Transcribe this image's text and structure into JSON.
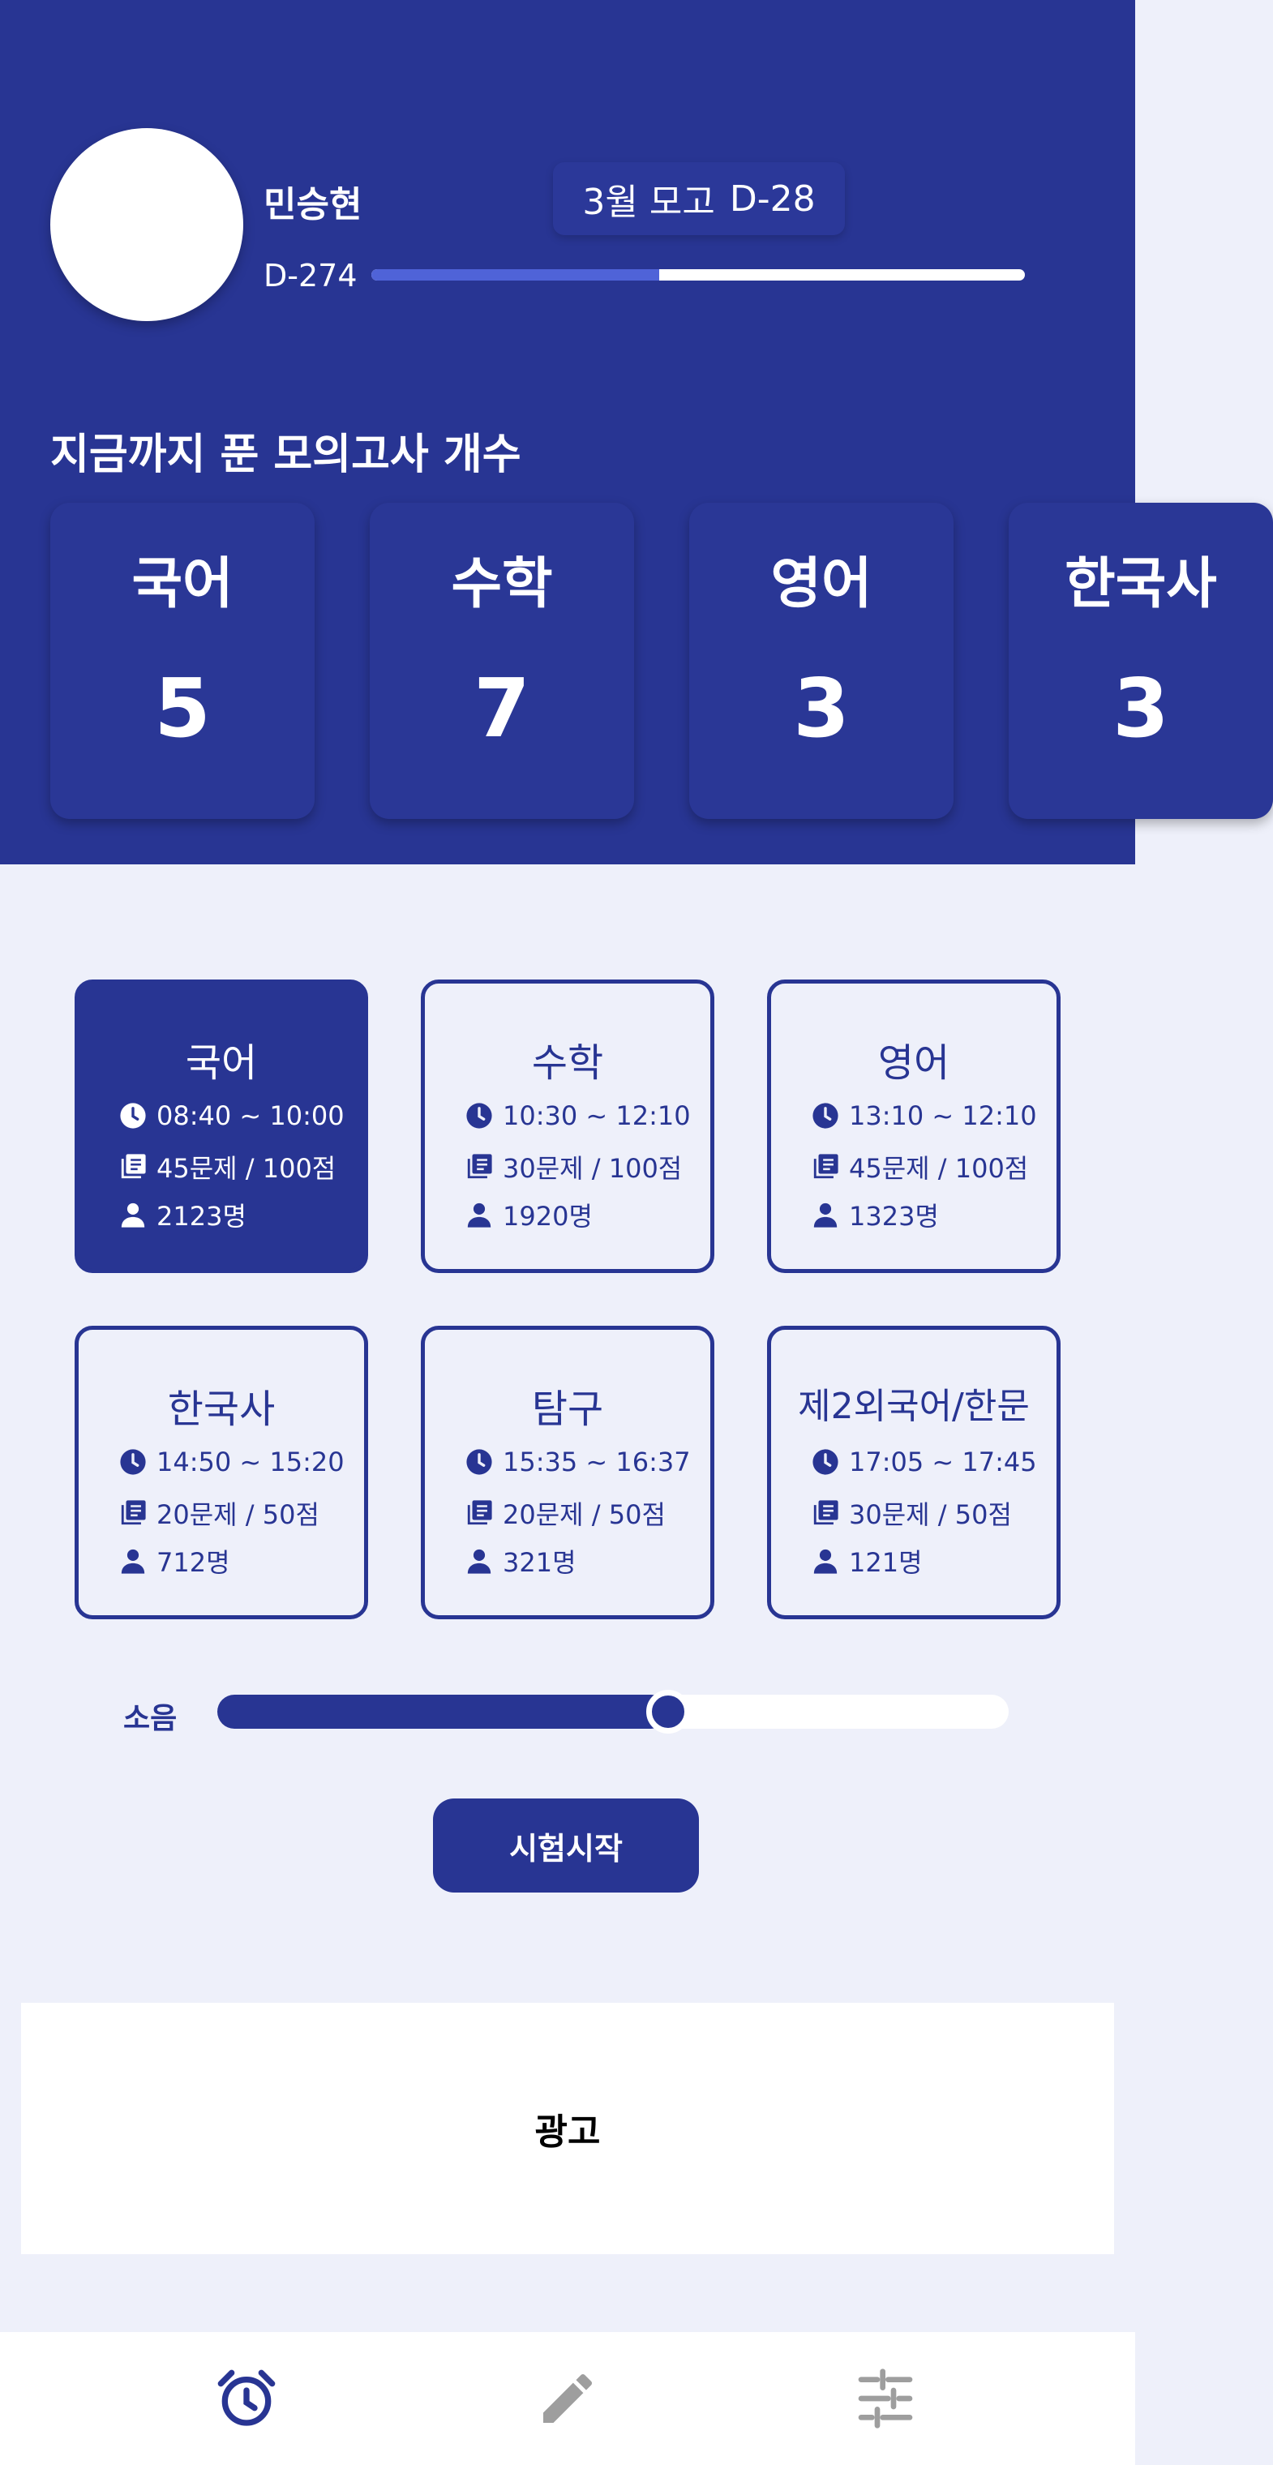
{
  "profile": {
    "name": "민승현",
    "dday": "D-274",
    "progress": 0.44
  },
  "exam": {
    "label": "3월 모고",
    "dday": "D-28"
  },
  "counts": {
    "title": "지금까지 푼 모의고사 개수",
    "items": [
      {
        "subject": "국어",
        "count": "5"
      },
      {
        "subject": "수학",
        "count": "7"
      },
      {
        "subject": "영어",
        "count": "3"
      },
      {
        "subject": "한국사",
        "count": "3"
      }
    ]
  },
  "subjects": [
    {
      "name": "국어",
      "time": "08:40 ~ 10:00",
      "questions": "45문제 / 100점",
      "people": "2123명",
      "selected": true
    },
    {
      "name": "수학",
      "time": "10:30 ~ 12:10",
      "questions": "30문제 / 100점",
      "people": "1920명",
      "selected": false
    },
    {
      "name": "영어",
      "time": "13:10 ~ 12:10",
      "questions": "45문제 / 100점",
      "people": "1323명",
      "selected": false
    },
    {
      "name": "한국사",
      "time": "14:50 ~ 15:20",
      "questions": "20문제 / 50점",
      "people": "712명",
      "selected": false
    },
    {
      "name": "탐구",
      "time": "15:35 ~ 16:37",
      "questions": "20문제 / 50점",
      "people": "321명",
      "selected": false
    },
    {
      "name": "제2외국어/한문",
      "time": "17:05 ~ 17:45",
      "questions": "30문제 / 50점",
      "people": "121명",
      "selected": false
    }
  ],
  "volume": {
    "label": "소음",
    "level": 0.57
  },
  "start_button": "시험시작",
  "ad": "광고",
  "nav": [
    {
      "icon": "alarm-clock-icon"
    },
    {
      "icon": "pencil-icon"
    },
    {
      "icon": "sliders-icon"
    }
  ],
  "colors": {
    "primary": "#283593",
    "background": "#EEF0FA",
    "progress": "#4F63D8",
    "white": "#FFFFFF"
  }
}
